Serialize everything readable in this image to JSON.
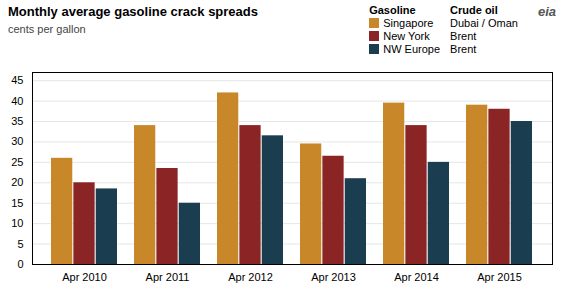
{
  "chart_data": {
    "type": "bar",
    "title": "Monthly  average gasoline crack spreads",
    "subtitle": "cents per gallon",
    "categories": [
      "Apr 2010",
      "Apr 2011",
      "Apr 2012",
      "Apr 2013",
      "Apr 2014",
      "Apr 2015"
    ],
    "series": [
      {
        "name": "Singapore",
        "crude": "Dubai / Oman",
        "color": "#C8882A",
        "values": [
          26,
          34,
          42,
          29.5,
          39.5,
          39
        ]
      },
      {
        "name": "New York",
        "crude": "Brent",
        "color": "#8B2525",
        "values": [
          20,
          23.5,
          34,
          26.5,
          34,
          38
        ]
      },
      {
        "name": "NW Europe",
        "crude": "Brent",
        "color": "#1A3D4F",
        "values": [
          18.5,
          15,
          31.5,
          21,
          25,
          35
        ]
      }
    ],
    "legend_title": "Gasoline",
    "legend_crude_title": "Crude oil",
    "annotations": [
      "eia"
    ],
    "ylim": [
      0,
      47
    ],
    "yticks": [
      0,
      5,
      10,
      15,
      20,
      25,
      30,
      35,
      40,
      45
    ],
    "grid": true
  }
}
